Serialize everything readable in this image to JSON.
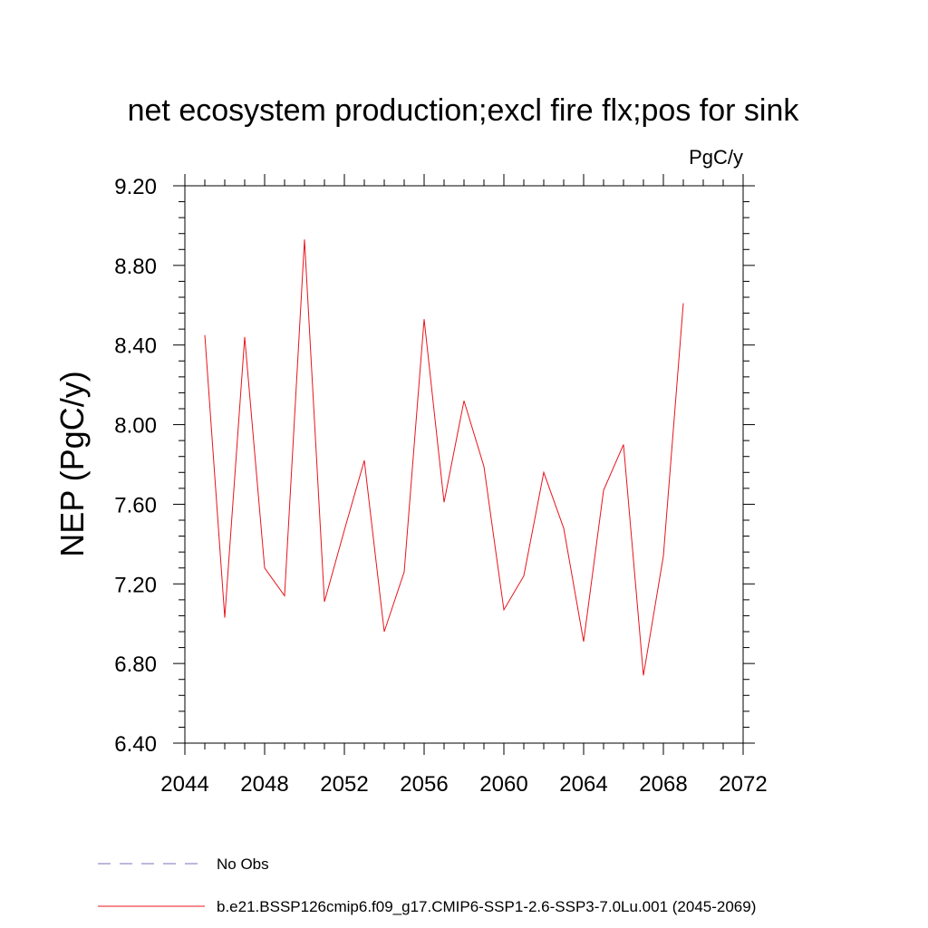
{
  "chart_data": {
    "type": "line",
    "title": "net ecosystem production;excl fire flx;pos for sink",
    "units_label": "PgC/y",
    "ylabel": "NEP  (PgC/y)",
    "xlabel": "",
    "xlim": [
      2044,
      2072
    ],
    "ylim": [
      6.4,
      9.2
    ],
    "x_ticks": [
      2044,
      2048,
      2052,
      2056,
      2060,
      2064,
      2068,
      2072
    ],
    "y_ticks": [
      "6.40",
      "6.80",
      "7.20",
      "7.60",
      "8.00",
      "8.40",
      "8.80",
      "9.20"
    ],
    "x_minor_step": 1,
    "y_minor_step": 0.08,
    "grid": false,
    "legend_position": "bottom",
    "legend": [
      {
        "label": "No Obs",
        "color": "#7b6fb8",
        "style": "dashed"
      },
      {
        "label": "b.e21.BSSP126cmip6.f09_g17.CMIP6-SSP1-2.6-SSP3-7.0Lu.001 (2045-2069)",
        "color": "#e8141c",
        "style": "solid"
      }
    ],
    "series": [
      {
        "name": "b.e21.BSSP126cmip6.f09_g17.CMIP6-SSP1-2.6-SSP3-7.0Lu.001 (2045-2069)",
        "color": "#e8141c",
        "x": [
          2045,
          2046,
          2047,
          2048,
          2049,
          2050,
          2051,
          2052,
          2053,
          2054,
          2055,
          2056,
          2057,
          2058,
          2059,
          2060,
          2061,
          2062,
          2063,
          2064,
          2065,
          2066,
          2067,
          2068,
          2069
        ],
        "values": [
          8.45,
          7.03,
          8.44,
          7.28,
          7.14,
          8.93,
          7.11,
          7.47,
          7.82,
          6.96,
          7.26,
          8.53,
          7.61,
          8.12,
          7.79,
          7.07,
          7.24,
          7.76,
          7.48,
          6.91,
          7.67,
          7.9,
          6.74,
          7.34,
          8.61
        ]
      }
    ]
  }
}
